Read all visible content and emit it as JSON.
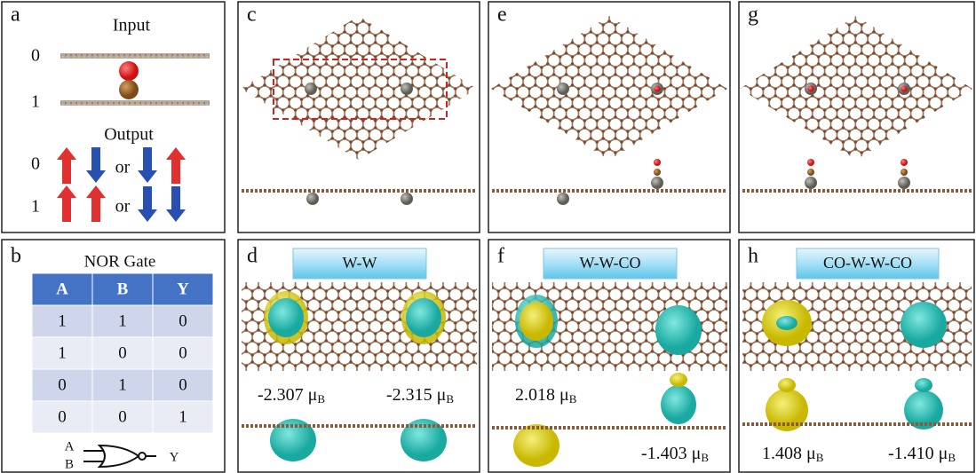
{
  "panel_a": {
    "label": "a",
    "input_title": "Input",
    "input_states": [
      "0",
      "1"
    ],
    "output_title": "Output",
    "output_states": [
      "0",
      "1"
    ],
    "or_labels": [
      "or",
      "or"
    ]
  },
  "panel_b": {
    "label": "b",
    "title": "NOR Gate",
    "table": {
      "header": [
        "A",
        "B",
        "Y"
      ],
      "rows": [
        [
          "1",
          "1",
          "0"
        ],
        [
          "1",
          "0",
          "0"
        ],
        [
          "0",
          "1",
          "0"
        ],
        [
          "0",
          "0",
          "1"
        ]
      ]
    },
    "gate_inputs": [
      "A",
      "B"
    ],
    "gate_output": "Y"
  },
  "panel_c": {
    "label": "c"
  },
  "panel_e": {
    "label": "e"
  },
  "panel_g": {
    "label": "g"
  },
  "panel_d": {
    "label": "d",
    "tag": "W-W",
    "moments": [
      {
        "text": "-2.307 μ",
        "sub": "B"
      },
      {
        "text": "-2.315 μ",
        "sub": "B"
      }
    ]
  },
  "panel_f": {
    "label": "f",
    "tag": "W-W-CO",
    "moments": [
      {
        "text": "2.018 μ",
        "sub": "B"
      },
      {
        "text": "-1.403 μ",
        "sub": "B"
      }
    ]
  },
  "panel_h": {
    "label": "h",
    "tag": "CO-W-W-CO",
    "moments": [
      {
        "text": "1.408 μ",
        "sub": "B"
      },
      {
        "text": "-1.410 μ",
        "sub": "B"
      }
    ]
  }
}
